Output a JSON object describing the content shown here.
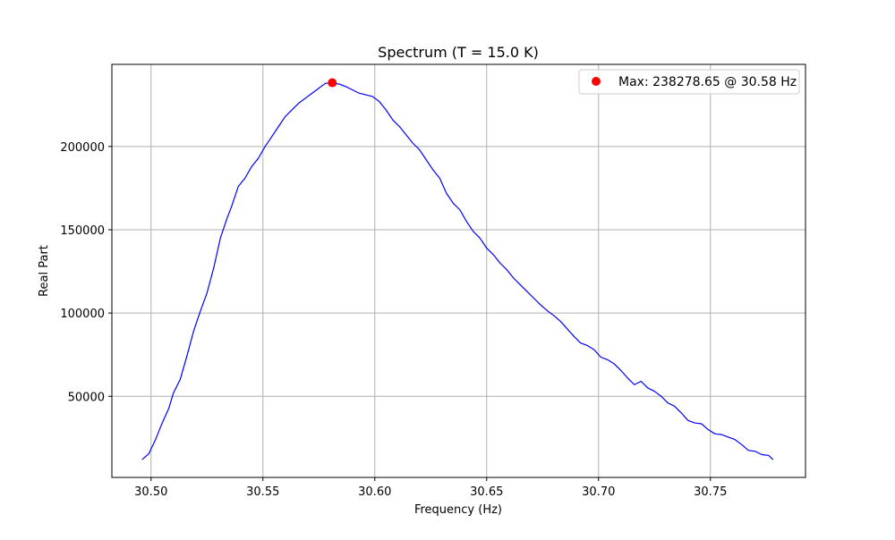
{
  "chart_data": {
    "type": "line",
    "title": "Spectrum (T = 15.0 K)",
    "xlabel": "Frequency (Hz)",
    "ylabel": "Real Part",
    "xlim": [
      30.4825,
      30.7925
    ],
    "ylim": [
      1300,
      249300
    ],
    "xticks": [
      30.5,
      30.55,
      30.6,
      30.65,
      30.7,
      30.75
    ],
    "xtick_labels": [
      "30.50",
      "30.55",
      "30.60",
      "30.65",
      "30.70",
      "30.75"
    ],
    "yticks": [
      50000,
      100000,
      150000,
      200000
    ],
    "ytick_labels": [
      "50000",
      "100000",
      "150000",
      "200000"
    ],
    "grid": true,
    "legend_position": "top-right",
    "colors": {
      "line": "#0000ff",
      "marker": "#ff0000",
      "grid": "#b0b0b0",
      "axes": "#000000"
    },
    "series": [
      {
        "type": "line",
        "x": [
          30.496,
          30.499,
          30.502,
          30.505,
          30.508,
          30.51,
          30.513,
          30.516,
          30.519,
          30.522,
          30.525,
          30.528,
          30.531,
          30.534,
          30.536,
          30.539,
          30.542,
          30.545,
          30.548,
          30.551,
          30.554,
          30.557,
          30.56,
          30.563,
          30.566,
          30.569,
          30.572,
          30.575,
          30.578,
          30.581,
          30.584,
          30.587,
          30.59,
          30.593,
          30.596,
          30.599,
          30.602,
          30.605,
          30.608,
          30.611,
          30.614,
          30.617,
          30.62,
          30.623,
          30.626,
          30.629,
          30.632,
          30.635,
          30.638,
          30.641,
          30.644,
          30.647,
          30.65,
          30.653,
          30.656,
          30.659,
          30.662,
          30.665,
          30.668,
          30.671,
          30.674,
          30.677,
          30.68,
          30.683,
          30.686,
          30.689,
          30.692,
          30.695,
          30.698,
          30.701,
          30.704,
          30.707,
          30.71,
          30.713,
          30.716,
          30.719,
          30.722,
          30.725,
          30.728,
          30.731,
          30.734,
          30.737,
          30.74,
          30.743,
          30.746,
          30.749,
          30.752,
          30.755,
          30.758,
          30.761,
          30.764,
          30.767,
          30.77,
          30.773,
          30.776,
          30.778
        ],
        "values": [
          12000,
          15500,
          24000,
          34000,
          43000,
          52000,
          60000,
          74000,
          89000,
          101000,
          112000,
          127000,
          145000,
          157000,
          164000,
          176000,
          181000,
          188000,
          193000,
          200000,
          206000,
          212000,
          218000,
          222000,
          226000,
          229000,
          232000,
          235000,
          238000,
          238000,
          237500,
          236000,
          234000,
          232000,
          231000,
          230000,
          227000,
          222000,
          216000,
          212000,
          207000,
          202000,
          198000,
          192000,
          186000,
          181000,
          172000,
          166000,
          162000,
          155000,
          149000,
          145000,
          139000,
          135000,
          130000,
          126000,
          121000,
          117000,
          113000,
          109000,
          105000,
          101500,
          98500,
          95000,
          90500,
          86000,
          82000,
          80500,
          78000,
          73500,
          72000,
          69500,
          65500,
          61000,
          57000,
          59000,
          55000,
          53000,
          50000,
          46000,
          44000,
          40000,
          35500,
          34000,
          33500,
          30000,
          27500,
          27000,
          25500,
          24000,
          21000,
          17500,
          17000,
          15000,
          14500,
          12000
        ]
      },
      {
        "type": "scatter",
        "name": "Max: 238278.65 @ 30.58 Hz",
        "x": [
          30.581
        ],
        "values": [
          238278.65
        ]
      }
    ]
  }
}
